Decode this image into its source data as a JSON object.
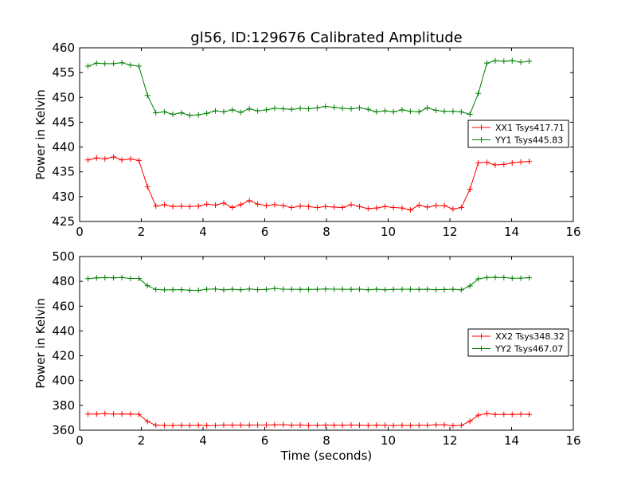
{
  "chart_data": {
    "title": "gl56, ID:129676 Calibrated Amplitude",
    "panels": [
      {
        "type": "line",
        "xlabel": "",
        "ylabel": "Power in Kelvin",
        "xlim": [
          0,
          16
        ],
        "ylim": [
          425,
          460
        ],
        "xticks": [
          0,
          2,
          4,
          6,
          8,
          10,
          12,
          14,
          16
        ],
        "yticks": [
          425,
          430,
          435,
          440,
          445,
          450,
          455,
          460
        ],
        "legend_position": "center-right",
        "x": [
          0.27,
          0.55,
          0.82,
          1.1,
          1.37,
          1.65,
          1.92,
          2.2,
          2.47,
          2.75,
          3.02,
          3.3,
          3.57,
          3.85,
          4.12,
          4.4,
          4.67,
          4.95,
          5.22,
          5.5,
          5.77,
          6.05,
          6.32,
          6.6,
          6.87,
          7.15,
          7.42,
          7.7,
          7.97,
          8.25,
          8.52,
          8.8,
          9.07,
          9.35,
          9.62,
          9.9,
          10.17,
          10.45,
          10.72,
          11.0,
          11.27,
          11.55,
          11.82,
          12.1,
          12.37,
          12.65,
          12.92,
          13.2,
          13.47,
          13.75,
          14.02,
          14.3,
          14.57
        ],
        "series": [
          {
            "name": "XX1 Tsys417.71",
            "color": "#ff0000",
            "values": [
              437.4,
              437.8,
              437.6,
              438.0,
              437.4,
              437.6,
              437.3,
              432.0,
              428.1,
              428.4,
              428.0,
              428.1,
              428.0,
              428.1,
              428.5,
              428.3,
              428.7,
              427.8,
              428.4,
              429.2,
              428.5,
              428.2,
              428.4,
              428.2,
              427.8,
              428.1,
              428.0,
              427.8,
              428.0,
              427.9,
              427.8,
              428.4,
              428.0,
              427.6,
              427.7,
              428.0,
              427.8,
              427.7,
              427.3,
              428.3,
              427.9,
              428.2,
              428.2,
              427.5,
              427.8,
              431.5,
              436.8,
              436.9,
              436.4,
              436.5,
              436.8,
              437.0,
              437.1
            ]
          },
          {
            "name": "YY1 Tsys445.83",
            "color": "#008000",
            "values": [
              456.3,
              456.9,
              456.8,
              456.8,
              457.0,
              456.5,
              456.3,
              450.4,
              446.9,
              447.1,
              446.6,
              446.9,
              446.4,
              446.5,
              446.8,
              447.3,
              447.1,
              447.5,
              447.0,
              447.7,
              447.3,
              447.5,
              447.8,
              447.7,
              447.6,
              447.8,
              447.7,
              447.9,
              448.2,
              448.0,
              447.8,
              447.7,
              447.9,
              447.6,
              447.1,
              447.3,
              447.1,
              447.5,
              447.2,
              447.1,
              447.9,
              447.4,
              447.2,
              447.2,
              447.1,
              446.6,
              450.8,
              456.9,
              457.4,
              457.3,
              457.4,
              457.1,
              457.3
            ]
          }
        ]
      },
      {
        "type": "line",
        "xlabel": "Time (seconds)",
        "ylabel": "Power in Kelvin",
        "xlim": [
          0,
          16
        ],
        "ylim": [
          360,
          500
        ],
        "xticks": [
          0,
          2,
          4,
          6,
          8,
          10,
          12,
          14,
          16
        ],
        "yticks": [
          360,
          380,
          400,
          420,
          440,
          460,
          480,
          500
        ],
        "legend_position": "center-right",
        "x": [
          0.27,
          0.55,
          0.82,
          1.1,
          1.37,
          1.65,
          1.92,
          2.2,
          2.47,
          2.75,
          3.02,
          3.3,
          3.57,
          3.85,
          4.12,
          4.4,
          4.67,
          4.95,
          5.22,
          5.5,
          5.77,
          6.05,
          6.32,
          6.6,
          6.87,
          7.15,
          7.42,
          7.7,
          7.97,
          8.25,
          8.52,
          8.8,
          9.07,
          9.35,
          9.62,
          9.9,
          10.17,
          10.45,
          10.72,
          11.0,
          11.27,
          11.55,
          11.82,
          12.1,
          12.37,
          12.65,
          12.92,
          13.2,
          13.47,
          13.75,
          14.02,
          14.3,
          14.57
        ],
        "series": [
          {
            "name": "XX2 Tsys348.32",
            "color": "#ff0000",
            "values": [
              373.0,
              373.0,
              373.4,
              373.0,
              373.1,
              373.0,
              372.8,
              367.0,
              364.0,
              363.8,
              363.8,
              363.9,
              363.8,
              364.0,
              363.7,
              363.8,
              364.2,
              364.1,
              364.1,
              364.1,
              364.2,
              364.2,
              364.3,
              364.5,
              364.0,
              364.2,
              363.8,
              363.9,
              364.1,
              364.0,
              363.9,
              364.2,
              364.0,
              363.8,
              364.0,
              363.9,
              363.8,
              363.9,
              363.8,
              363.9,
              363.9,
              364.3,
              364.3,
              363.6,
              363.9,
              367.2,
              372.1,
              373.4,
              372.7,
              372.8,
              372.7,
              372.9,
              372.7
            ]
          },
          {
            "name": "YY2 Tsys467.07",
            "color": "#008000",
            "values": [
              482.2,
              482.8,
              483.0,
              482.8,
              483.1,
              482.3,
              482.3,
              476.5,
              473.4,
              473.1,
              473.2,
              473.3,
              472.8,
              472.7,
              473.6,
              473.8,
              473.1,
              473.6,
              473.2,
              473.8,
              473.3,
              473.5,
              474.2,
              473.7,
              473.6,
              473.5,
              473.5,
              473.6,
              473.8,
              473.7,
              473.6,
              473.5,
              473.7,
              473.2,
              473.6,
              473.2,
              473.5,
              473.6,
              473.6,
              473.5,
              473.6,
              473.3,
              473.4,
              473.6,
              473.1,
              476.3,
              482.0,
              483.1,
              483.2,
              483.1,
              482.5,
              482.6,
              482.9
            ]
          }
        ]
      }
    ]
  }
}
